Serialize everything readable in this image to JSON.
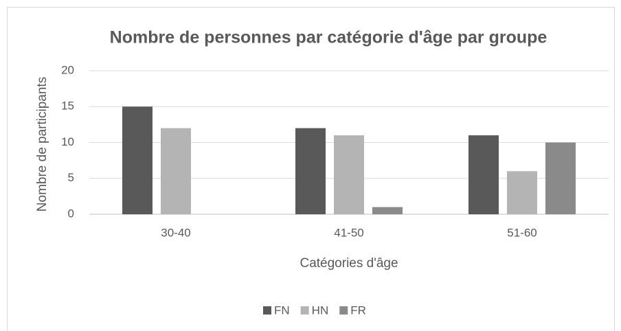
{
  "chart_data": {
    "type": "bar",
    "title": "Nombre de personnes par catégorie d'âge par groupe",
    "x_label": "Catégories d'âge",
    "y_label": "Nombre de participants",
    "categories": [
      "30-40",
      "41-50",
      "51-60"
    ],
    "series": [
      {
        "name": "FN",
        "color": "#595959",
        "values": [
          15,
          12,
          11
        ]
      },
      {
        "name": "HN",
        "color": "#b4b4b4",
        "values": [
          12,
          11,
          6
        ]
      },
      {
        "name": "FR",
        "color": "#8a8a8a",
        "values": [
          0,
          1,
          10
        ]
      }
    ],
    "ylim": [
      0,
      20
    ],
    "yticks": [
      0,
      5,
      10,
      15,
      20
    ],
    "grid": true,
    "legend": "bottom"
  }
}
